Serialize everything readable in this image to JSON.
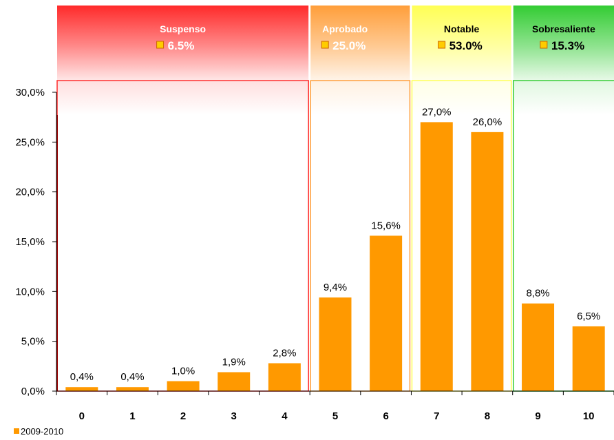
{
  "chart_data": {
    "type": "bar",
    "categories": [
      "0",
      "1",
      "2",
      "3",
      "4",
      "5",
      "6",
      "7",
      "8",
      "9",
      "10"
    ],
    "series": [
      {
        "name": "2009-2010",
        "values": [
          0.4,
          0.4,
          1.0,
          1.9,
          2.8,
          9.4,
          15.6,
          27.0,
          26.0,
          8.8,
          6.5
        ],
        "color": "#ff9900"
      }
    ],
    "data_labels": [
      "0,4%",
      "0,4%",
      "1,0%",
      "1,9%",
      "2,8%",
      "9,4%",
      "15,6%",
      "27,0%",
      "26,0%",
      "8,8%",
      "6,5%"
    ],
    "ylim": [
      0,
      30
    ],
    "yticks": [
      0,
      5,
      10,
      15,
      20,
      25,
      30
    ],
    "ytick_labels": [
      "0,0%",
      "5,0%",
      "10,0%",
      "15,0%",
      "20,0%",
      "25,0%",
      "30,0%"
    ],
    "legend": {
      "placement": "bottom-left",
      "label": "2009-2010"
    },
    "groups": [
      {
        "name": "Suspenso",
        "percent": "6.5%",
        "from": 0,
        "to": 4,
        "color": "#ff2a2a",
        "text_color": "#ffffff"
      },
      {
        "name": "Aprobado",
        "percent": "25.0%",
        "from": 5,
        "to": 6,
        "color": "#ff9e3a",
        "text_color": "#ffffff"
      },
      {
        "name": "Notable",
        "percent": "53.0%",
        "from": 7,
        "to": 8,
        "color": "#ffff55",
        "text_color": "#000000"
      },
      {
        "name": "Sobresaliente",
        "percent": "15.3%",
        "from": 9,
        "to": 10,
        "color": "#33cc33",
        "text_color": "#000000"
      }
    ]
  }
}
